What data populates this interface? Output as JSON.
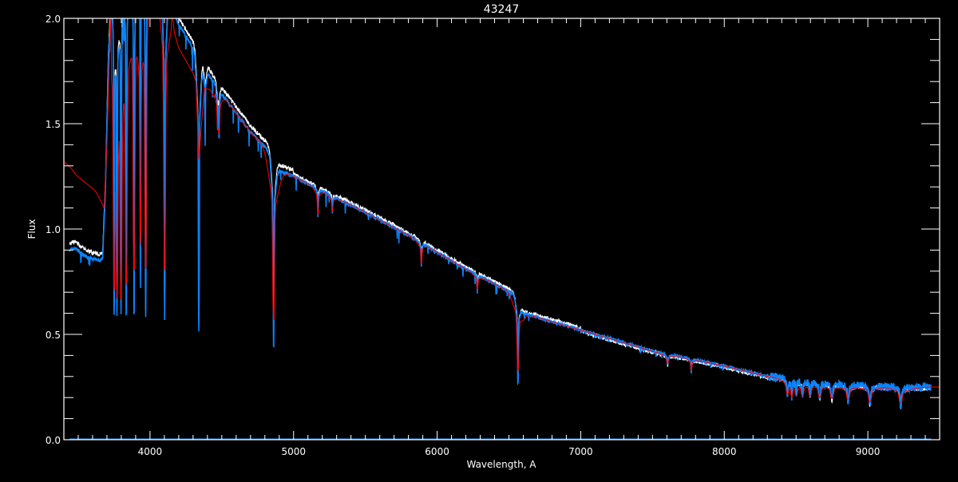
{
  "chart_data": {
    "type": "line",
    "title": "43247",
    "xlabel": "Wavelength, A",
    "ylabel": "Flux",
    "xlim": [
      3400,
      9500
    ],
    "ylim": [
      0.0,
      2.0
    ],
    "xticks": [
      "4000",
      "5000",
      "6000",
      "7000",
      "8000",
      "9000"
    ],
    "yticks": [
      "0.0",
      "0.5",
      "1.0",
      "1.5",
      "2.0"
    ],
    "x_minor_step": 100,
    "y_minor_step": 0.1,
    "grid": false,
    "background": "#000000",
    "colors": {
      "axes": "#ffffff",
      "series_white": "#ffffff",
      "series_blue": "#0a84ff",
      "series_red": "#ff0000"
    },
    "continuum": [
      [
        3440,
        0.9
      ],
      [
        3480,
        0.91
      ],
      [
        3550,
        0.87
      ],
      [
        3640,
        0.85
      ],
      [
        3670,
        0.86
      ],
      [
        3690,
        1.2
      ],
      [
        3710,
        1.8
      ],
      [
        3740,
        2.3
      ],
      [
        4000,
        2.35
      ],
      [
        4150,
        2.05
      ],
      [
        4200,
        1.97
      ],
      [
        4300,
        1.86
      ],
      [
        4400,
        1.74
      ],
      [
        4500,
        1.64
      ],
      [
        4600,
        1.55
      ],
      [
        4700,
        1.46
      ],
      [
        4800,
        1.39
      ],
      [
        4840,
        1.35
      ],
      [
        4880,
        1.28
      ],
      [
        5000,
        1.25
      ],
      [
        5200,
        1.18
      ],
      [
        5500,
        1.08
      ],
      [
        5800,
        0.97
      ],
      [
        6000,
        0.89
      ],
      [
        6200,
        0.81
      ],
      [
        6400,
        0.74
      ],
      [
        6540,
        0.69
      ],
      [
        6600,
        0.6
      ],
      [
        7000,
        0.52
      ],
      [
        7500,
        0.42
      ],
      [
        8000,
        0.35
      ],
      [
        8300,
        0.3
      ],
      [
        8500,
        0.285
      ],
      [
        8700,
        0.27
      ],
      [
        9000,
        0.255
      ],
      [
        9300,
        0.245
      ],
      [
        9440,
        0.25
      ]
    ],
    "lines": [
      [
        3750,
        0.62,
        3
      ],
      [
        3770,
        0.63,
        3
      ],
      [
        3798,
        0.6,
        3
      ],
      [
        3835,
        0.6,
        3
      ],
      [
        3889,
        0.6,
        3
      ],
      [
        3933,
        0.85,
        2
      ],
      [
        3970,
        0.58,
        3
      ],
      [
        4102,
        0.57,
        3
      ],
      [
        4340,
        0.52,
        3
      ],
      [
        4384,
        1.4,
        2
      ],
      [
        4471,
        1.5,
        2
      ],
      [
        4481,
        1.45,
        2
      ],
      [
        4861,
        0.44,
        3
      ],
      [
        5170,
        1.05,
        2
      ],
      [
        5270,
        1.07,
        2
      ],
      [
        5890,
        0.82,
        2
      ],
      [
        6280,
        0.7,
        2
      ],
      [
        6563,
        0.27,
        3
      ],
      [
        7605,
        0.36,
        4
      ],
      [
        7770,
        0.32,
        2
      ],
      [
        8440,
        0.22,
        4
      ],
      [
        8470,
        0.21,
        3
      ],
      [
        8502,
        0.22,
        4
      ],
      [
        8545,
        0.21,
        4
      ],
      [
        8598,
        0.21,
        4
      ],
      [
        8665,
        0.2,
        5
      ],
      [
        8750,
        0.19,
        5
      ],
      [
        8863,
        0.18,
        5
      ],
      [
        9015,
        0.17,
        5
      ],
      [
        9229,
        0.16,
        5
      ]
    ],
    "red_overrides": [
      [
        3400,
        1.32
      ],
      [
        3450,
        1.29
      ],
      [
        3480,
        1.26
      ],
      [
        3550,
        1.22
      ],
      [
        3620,
        1.18
      ],
      [
        3660,
        1.13
      ],
      [
        3680,
        1.1
      ],
      [
        3700,
        1.4
      ],
      [
        3730,
        2.1
      ],
      [
        4150,
        2.05
      ],
      [
        4170,
        1.93
      ],
      [
        4200,
        1.86
      ],
      [
        4250,
        1.8
      ],
      [
        4300,
        1.74
      ],
      [
        4320,
        1.7
      ],
      [
        4340,
        1.33
      ],
      [
        4365,
        1.55
      ],
      [
        4380,
        1.67
      ],
      [
        4420,
        1.66
      ],
      [
        4450,
        1.62
      ]
    ],
    "error_level": 0.0
  }
}
